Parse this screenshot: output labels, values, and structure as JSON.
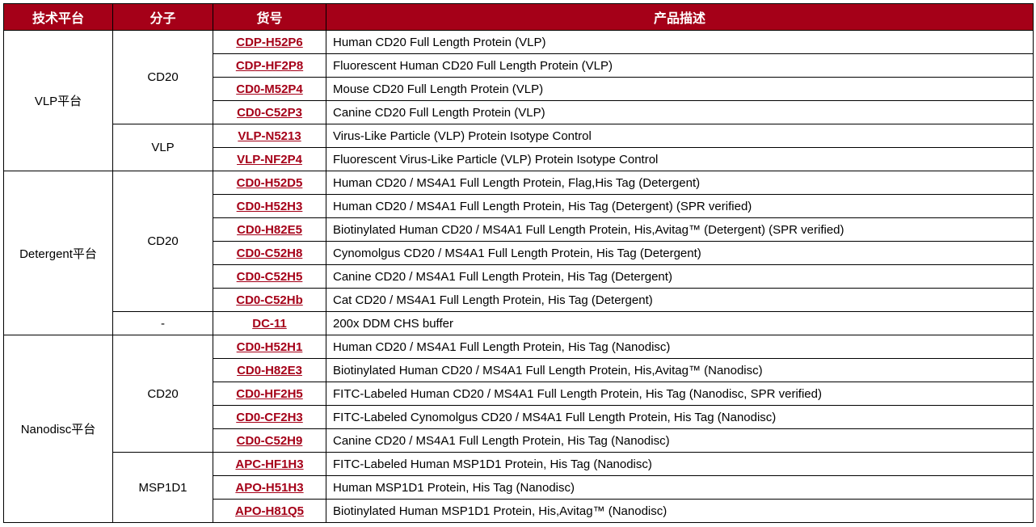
{
  "header": {
    "col1": "技术平台",
    "col2": "分子",
    "col3": "货号",
    "col4": "产品描述"
  },
  "colors": {
    "header_bg": "#a50018",
    "header_fg": "#ffffff",
    "code_color": "#a50018",
    "border_color": "#000000"
  },
  "rows": [
    {
      "platform": "VLP平台",
      "platform_rowspan": 6,
      "molecule": "CD20",
      "molecule_rowspan": 4,
      "code": "CDP-H52P6",
      "desc": "Human CD20 Full Length Protein (VLP)"
    },
    {
      "code": "CDP-HF2P8",
      "desc": "Fluorescent Human CD20 Full Length Protein (VLP)"
    },
    {
      "code": "CD0-M52P4",
      "desc": "Mouse CD20 Full Length Protein (VLP)"
    },
    {
      "code": "CD0-C52P3",
      "desc": "Canine CD20 Full Length Protein (VLP)"
    },
    {
      "molecule": "VLP",
      "molecule_rowspan": 2,
      "code": "VLP-N5213",
      "desc": "Virus-Like Particle (VLP) Protein Isotype Control"
    },
    {
      "code": "VLP-NF2P4",
      "desc": "Fluorescent Virus-Like Particle (VLP) Protein Isotype Control"
    },
    {
      "platform": "Detergent平台",
      "platform_rowspan": 7,
      "molecule": "CD20",
      "molecule_rowspan": 6,
      "code": "CD0-H52D5",
      "desc": "Human CD20 / MS4A1 Full Length Protein, Flag,His Tag (Detergent)"
    },
    {
      "code": "CD0-H52H3",
      "desc": "Human CD20 / MS4A1 Full Length Protein, His Tag (Detergent) (SPR verified)"
    },
    {
      "code": "CD0-H82E5",
      "desc": "Biotinylated Human CD20 / MS4A1 Full Length Protein, His,Avitag™ (Detergent) (SPR verified)"
    },
    {
      "code": "CD0-C52H8",
      "desc": "Cynomolgus CD20 / MS4A1 Full Length Protein, His Tag (Detergent)"
    },
    {
      "code": "CD0-C52H5",
      "desc": "Canine CD20 / MS4A1 Full Length Protein, His Tag (Detergent)"
    },
    {
      "code": "CD0-C52Hb",
      "desc": "Cat CD20 / MS4A1 Full Length Protein, His Tag (Detergent)"
    },
    {
      "molecule": "-",
      "molecule_rowspan": 1,
      "code": "DC-11",
      "desc": "200x DDM CHS buffer"
    },
    {
      "platform": "Nanodisc平台",
      "platform_rowspan": 8,
      "molecule": "CD20",
      "molecule_rowspan": 5,
      "code": "CD0-H52H1",
      "desc": "Human CD20 / MS4A1 Full Length Protein, His Tag (Nanodisc)"
    },
    {
      "code": "CD0-H82E3",
      "desc": "Biotinylated Human CD20 / MS4A1 Full Length Protein, His,Avitag™ (Nanodisc)"
    },
    {
      "code": "CD0-HF2H5",
      "desc": "FITC-Labeled Human CD20 / MS4A1 Full Length Protein, His Tag (Nanodisc, SPR verified)"
    },
    {
      "code": "CD0-CF2H3",
      "desc": "FITC-Labeled Cynomolgus CD20 / MS4A1 Full Length Protein, His Tag (Nanodisc)"
    },
    {
      "code": "CD0-C52H9",
      "desc": "Canine CD20 / MS4A1 Full Length Protein, His Tag (Nanodisc)"
    },
    {
      "molecule": "MSP1D1",
      "molecule_rowspan": 3,
      "code": "APC-HF1H3",
      "desc": "FITC-Labeled Human MSP1D1 Protein, His Tag (Nanodisc)"
    },
    {
      "code": "APO-H51H3",
      "desc": "Human MSP1D1 Protein, His Tag (Nanodisc)"
    },
    {
      "code": "APO-H81Q5",
      "desc": "Biotinylated Human MSP1D1 Protein, His,Avitag™ (Nanodisc)"
    }
  ]
}
